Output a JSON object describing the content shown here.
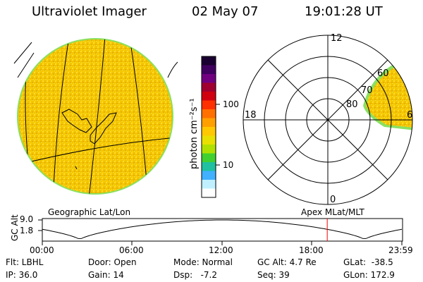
{
  "header": {
    "instrument": "Ultraviolet Imager",
    "date": "02 May 07",
    "time": "19:01:28 UT"
  },
  "colorbar": {
    "label": "photon cm⁻²s⁻¹",
    "ticks": [
      "100",
      "10"
    ],
    "colors": [
      "#1a0030",
      "#400060",
      "#700080",
      "#a00030",
      "#d00010",
      "#ff3000",
      "#ff7000",
      "#ffa000",
      "#ffc800",
      "#e8e000",
      "#b0e000",
      "#40d030",
      "#20c0a0",
      "#40b0ff",
      "#c0f0ff",
      "#ffffff"
    ]
  },
  "polar": {
    "mlt_labels": {
      "top": "12",
      "left": "18",
      "right": "6",
      "bottom": "0"
    },
    "lat_labels": [
      "60",
      "70",
      "80"
    ]
  },
  "altitude_plot": {
    "yaxis_label": "GC Alt",
    "y_ticks": [
      "9.0",
      "1.8"
    ],
    "x_ticks": [
      "00:00",
      "06:00",
      "12:00",
      "18:00",
      "23:59"
    ],
    "left_title": "Geographic Lat/Lon",
    "right_title": "Apex MLat/MLT",
    "current_time_hours": 19.02
  },
  "footer": {
    "filter": "Flt: LBHL",
    "ip": "IP: 36.0",
    "door": "Door: Open",
    "gain": "Gain: 14",
    "mode": "Mode: Normal",
    "dsp": "Dsp:   -7.2",
    "gcalt": "GC Alt: 4.7 Re",
    "seq": "Seq: 39",
    "glat": "GLat:  -38.5",
    "glon": "GLon: 172.9"
  }
}
